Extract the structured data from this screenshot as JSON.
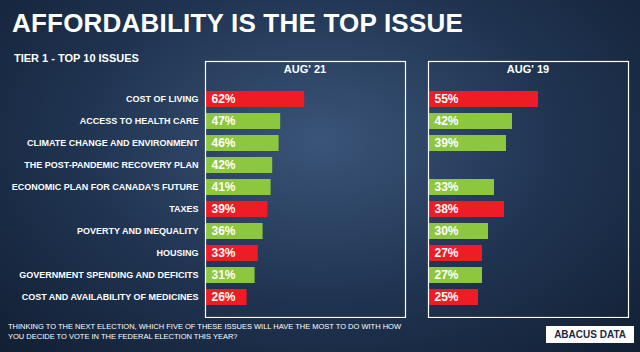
{
  "title": "AFFORDABILITY IS THE TOP ISSUE",
  "subtitle": "TIER 1 - TOP 10 ISSUES",
  "caption": "THINKING TO THE NEXT ELECTION, WHICH FIVE OF THESE ISSUES WILL HAVE THE MOST TO DO WITH HOW YOU DECIDE TO VOTE IN THE FEDERAL ELECTION THIS YEAR?",
  "source": "ABACUS DATA",
  "chart_data": [
    {
      "type": "bar",
      "title": "AUG' 21",
      "orientation": "horizontal",
      "data_labels": true,
      "tick_labels": "y",
      "categories": [
        "COST OF LIVING",
        "ACCESS TO HEALTH CARE",
        "CLIMATE CHANGE AND ENVIRONMENT",
        "THE POST-PANDEMIC RECOVERY PLAN",
        "ECONOMIC PLAN FOR CANADA'S FUTURE",
        "TAXES",
        "POVERTY AND INEQUALITY",
        "HOUSING",
        "GOVERNMENT SPENDING AND DEFICITS",
        "COST AND AVAILABILITY OF MEDICINES"
      ],
      "values": [
        62,
        47,
        46,
        42,
        41,
        39,
        36,
        33,
        31,
        26
      ],
      "value_labels": [
        "62%",
        "47%",
        "46%",
        "42%",
        "41%",
        "39%",
        "36%",
        "33%",
        "31%",
        "26%"
      ],
      "colors": [
        "#ee1c24",
        "#8dc63f",
        "#8dc63f",
        "#8dc63f",
        "#8dc63f",
        "#ee1c24",
        "#8dc63f",
        "#ee1c24",
        "#8dc63f",
        "#ee1c24"
      ],
      "xlim": [
        0,
        125
      ]
    },
    {
      "type": "bar",
      "title": "AUG' 19",
      "orientation": "horizontal",
      "data_labels": true,
      "tick_labels": false,
      "categories": [
        "COST OF LIVING",
        "ACCESS TO HEALTH CARE",
        "CLIMATE CHANGE AND ENVIRONMENT",
        "THE POST-PANDEMIC RECOVERY PLAN",
        "ECONOMIC PLAN FOR CANADA'S FUTURE",
        "TAXES",
        "POVERTY AND INEQUALITY",
        "HOUSING",
        "GOVERNMENT SPENDING AND DEFICITS",
        "COST AND AVAILABILITY OF MEDICINES"
      ],
      "values": [
        55,
        42,
        39,
        null,
        33,
        38,
        30,
        27,
        27,
        25
      ],
      "value_labels": [
        "55%",
        "42%",
        "39%",
        null,
        "33%",
        "38%",
        "30%",
        "27%",
        "27%",
        "25%"
      ],
      "colors": [
        "#ee1c24",
        "#8dc63f",
        "#8dc63f",
        null,
        "#8dc63f",
        "#ee1c24",
        "#8dc63f",
        "#ee1c24",
        "#8dc63f",
        "#ee1c24"
      ],
      "xlim": [
        0,
        100
      ]
    }
  ]
}
